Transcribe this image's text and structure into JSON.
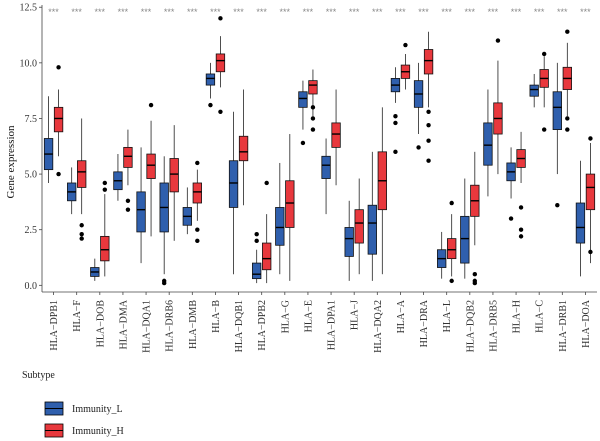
{
  "chart_data": {
    "type": "box",
    "xlabel": "",
    "ylabel": "Gene expression",
    "ylim": [
      -0.3,
      12.6
    ],
    "yticks": [
      "0.0",
      "2.5",
      "5.0",
      "7.5",
      "10.0",
      "12.5"
    ],
    "grid": false,
    "significance_label": "***",
    "categories": [
      "HLA−DPB1",
      "HLA−F",
      "HLA−DOB",
      "HLA−DMA",
      "HLA−DQA1",
      "HLA−DRB6",
      "HLA−DMB",
      "HLA−B",
      "HLA−DQB1",
      "HLA−DPB2",
      "HLA−G",
      "HLA−E",
      "HLA−DPA1",
      "HLA−J",
      "HLA−DQA2",
      "HLA−A",
      "HLA−DRA",
      "HLA−L",
      "HLA−DQB2",
      "HLA−DRB5",
      "HLA−H",
      "HLA−C",
      "HLA−DRB1",
      "HLA−DOA"
    ],
    "legend": {
      "title": "Subtype",
      "placement": "bottom-left"
    },
    "series": [
      {
        "name": "Immunity_L",
        "color": "#2f5fad",
        "boxes": [
          {
            "min": 4.6,
            "q1": 5.2,
            "median": 5.9,
            "q3": 6.6,
            "max": 8.5,
            "outliers": []
          },
          {
            "min": 3.2,
            "q1": 3.8,
            "median": 4.2,
            "q3": 4.6,
            "max": 5.3,
            "outliers": []
          },
          {
            "min": 0.2,
            "q1": 0.4,
            "median": 0.6,
            "q3": 0.8,
            "max": 1.2,
            "outliers": []
          },
          {
            "min": 3.8,
            "q1": 4.3,
            "median": 4.7,
            "q3": 5.1,
            "max": 5.9,
            "outliers": []
          },
          {
            "min": 1.0,
            "q1": 2.4,
            "median": 3.4,
            "q3": 4.2,
            "max": 6.2,
            "outliers": []
          },
          {
            "min": 0.5,
            "q1": 2.4,
            "median": 3.5,
            "q3": 4.6,
            "max": 5.8,
            "outliers": [
              0.1,
              0.2
            ]
          },
          {
            "min": 2.3,
            "q1": 2.7,
            "median": 3.1,
            "q3": 3.5,
            "max": 4.4,
            "outliers": []
          },
          {
            "min": 8.4,
            "q1": 9.0,
            "median": 9.3,
            "q3": 9.5,
            "max": 10.0,
            "outliers": [
              8.1
            ]
          },
          {
            "min": 0.5,
            "q1": 3.5,
            "median": 4.6,
            "q3": 5.6,
            "max": 7.8,
            "outliers": []
          },
          {
            "min": 0.1,
            "q1": 0.3,
            "median": 0.5,
            "q3": 1.0,
            "max": 1.6,
            "outliers": [
              2.0,
              2.3
            ]
          },
          {
            "min": 0.5,
            "q1": 1.8,
            "median": 2.6,
            "q3": 3.5,
            "max": 5.5,
            "outliers": []
          },
          {
            "min": 7.0,
            "q1": 8.0,
            "median": 8.4,
            "q3": 8.7,
            "max": 9.2,
            "outliers": [
              6.4
            ]
          },
          {
            "min": 3.2,
            "q1": 4.8,
            "median": 5.4,
            "q3": 5.8,
            "max": 6.6,
            "outliers": []
          },
          {
            "min": 0.2,
            "q1": 1.3,
            "median": 2.1,
            "q3": 2.6,
            "max": 3.8,
            "outliers": []
          },
          {
            "min": 0.2,
            "q1": 1.4,
            "median": 2.8,
            "q3": 3.6,
            "max": 6.0,
            "outliers": []
          },
          {
            "min": 8.2,
            "q1": 8.7,
            "median": 9.0,
            "q3": 9.3,
            "max": 9.8,
            "outliers": [
              7.6,
              7.3,
              6.0
            ]
          },
          {
            "min": 6.8,
            "q1": 8.0,
            "median": 8.6,
            "q3": 9.2,
            "max": 10.0,
            "outliers": [
              6.2
            ]
          },
          {
            "min": 0.3,
            "q1": 0.8,
            "median": 1.2,
            "q3": 1.6,
            "max": 2.4,
            "outliers": []
          },
          {
            "min": 0.3,
            "q1": 1.0,
            "median": 2.1,
            "q3": 3.1,
            "max": 4.8,
            "outliers": []
          },
          {
            "min": 4.0,
            "q1": 5.4,
            "median": 6.3,
            "q3": 7.3,
            "max": 8.8,
            "outliers": []
          },
          {
            "min": 3.9,
            "q1": 4.7,
            "median": 5.1,
            "q3": 5.5,
            "max": 6.2,
            "outliers": [
              3.0
            ]
          },
          {
            "min": 8.0,
            "q1": 8.5,
            "median": 8.8,
            "q3": 9.0,
            "max": 9.5,
            "outliers": []
          },
          {
            "min": 5.0,
            "q1": 7.0,
            "median": 8.0,
            "q3": 8.7,
            "max": 10.0,
            "outliers": [
              3.6
            ]
          },
          {
            "min": 0.4,
            "q1": 1.9,
            "median": 2.6,
            "q3": 3.7,
            "max": 5.6,
            "outliers": []
          }
        ]
      },
      {
        "name": "Immunity_H",
        "color": "#e8383d",
        "boxes": [
          {
            "min": 5.8,
            "q1": 6.9,
            "median": 7.5,
            "q3": 8.0,
            "max": 8.8,
            "outliers": [
              9.8,
              5.0
            ]
          },
          {
            "min": 3.2,
            "q1": 4.4,
            "median": 5.1,
            "q3": 5.6,
            "max": 7.5,
            "outliers": [
              2.7,
              2.3,
              2.1
            ]
          },
          {
            "min": 0.4,
            "q1": 1.1,
            "median": 1.6,
            "q3": 2.2,
            "max": 4.1,
            "outliers": [
              4.3,
              4.6
            ]
          },
          {
            "min": 4.5,
            "q1": 5.3,
            "median": 5.8,
            "q3": 6.2,
            "max": 7.0,
            "outliers": [
              3.8,
              3.4
            ]
          },
          {
            "min": 2.2,
            "q1": 4.8,
            "median": 5.4,
            "q3": 5.9,
            "max": 7.4,
            "outliers": [
              8.1
            ]
          },
          {
            "min": 2.0,
            "q1": 4.2,
            "median": 5.0,
            "q3": 5.7,
            "max": 7.2,
            "outliers": []
          },
          {
            "min": 2.9,
            "q1": 3.7,
            "median": 4.2,
            "q3": 4.6,
            "max": 5.2,
            "outliers": [
              5.5,
              2.5,
              2.0
            ]
          },
          {
            "min": 8.9,
            "q1": 9.6,
            "median": 10.1,
            "q3": 10.4,
            "max": 11.2,
            "outliers": [
              7.8,
              12.0
            ]
          },
          {
            "min": 3.6,
            "q1": 5.6,
            "median": 6.0,
            "q3": 6.7,
            "max": 8.8,
            "outliers": []
          },
          {
            "min": 0.1,
            "q1": 0.7,
            "median": 1.2,
            "q3": 1.9,
            "max": 3.2,
            "outliers": [
              4.6
            ]
          },
          {
            "min": 0.2,
            "q1": 2.6,
            "median": 3.7,
            "q3": 4.7,
            "max": 6.8,
            "outliers": []
          },
          {
            "min": 7.6,
            "q1": 8.6,
            "median": 9.0,
            "q3": 9.2,
            "max": 9.7,
            "outliers": [
              8.0,
              7.5,
              7.0
            ]
          },
          {
            "min": 4.5,
            "q1": 6.2,
            "median": 6.8,
            "q3": 7.3,
            "max": 8.8,
            "outliers": []
          },
          {
            "min": 0.5,
            "q1": 1.9,
            "median": 2.8,
            "q3": 3.4,
            "max": 4.8,
            "outliers": []
          },
          {
            "min": 0.5,
            "q1": 3.4,
            "median": 4.7,
            "q3": 6.0,
            "max": 8.0,
            "outliers": []
          },
          {
            "min": 8.8,
            "q1": 9.3,
            "median": 9.6,
            "q3": 9.9,
            "max": 10.4,
            "outliers": [
              10.8
            ]
          },
          {
            "min": 8.0,
            "q1": 9.5,
            "median": 10.1,
            "q3": 10.6,
            "max": 11.4,
            "outliers": [
              7.8,
              7.2,
              6.5,
              5.6
            ]
          },
          {
            "min": 0.4,
            "q1": 1.2,
            "median": 1.6,
            "q3": 2.1,
            "max": 3.2,
            "outliers": [
              3.7,
              0.2
            ]
          },
          {
            "min": 1.8,
            "q1": 3.1,
            "median": 3.8,
            "q3": 4.5,
            "max": 6.0,
            "outliers": [
              0.5,
              0.2,
              0.1
            ]
          },
          {
            "min": 5.0,
            "q1": 6.8,
            "median": 7.5,
            "q3": 8.2,
            "max": 10.1,
            "outliers": [
              11.0
            ]
          },
          {
            "min": 4.6,
            "q1": 5.3,
            "median": 5.7,
            "q3": 6.1,
            "max": 6.9,
            "outliers": [
              3.5,
              2.5,
              2.2
            ]
          },
          {
            "min": 8.0,
            "q1": 8.9,
            "median": 9.3,
            "q3": 9.7,
            "max": 10.3,
            "outliers": [
              10.4,
              7.0
            ]
          },
          {
            "min": 7.6,
            "q1": 8.8,
            "median": 9.3,
            "q3": 9.8,
            "max": 10.9,
            "outliers": [
              11.4,
              7.5,
              7.0
            ]
          },
          {
            "min": 1.0,
            "q1": 3.4,
            "median": 4.4,
            "q3": 5.0,
            "max": 6.4,
            "outliers": [
              6.6,
              1.5
            ]
          }
        ]
      }
    ]
  }
}
